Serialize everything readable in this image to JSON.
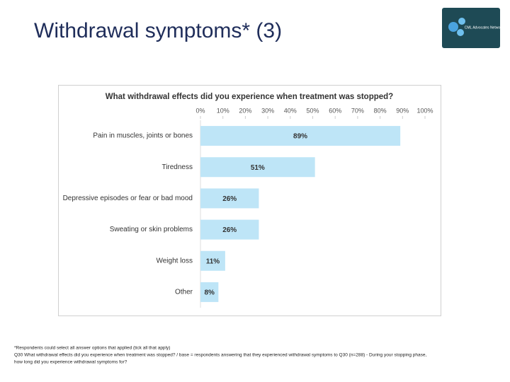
{
  "header": {
    "title": "Withdrawal symptoms* (3)",
    "logo_text": "CML Advocates Network"
  },
  "chart_data": {
    "type": "bar",
    "orientation": "horizontal",
    "title": "What withdrawal effects did you experience when treatment was stopped?",
    "categories": [
      "Pain in muscles, joints or bones",
      "Tiredness",
      "Depressive episodes or fear or bad mood",
      "Sweating or skin problems",
      "Weight loss",
      "Other"
    ],
    "values": [
      89,
      51,
      26,
      26,
      11,
      8
    ],
    "value_labels": [
      "89%",
      "51%",
      "26%",
      "26%",
      "11%",
      "8%"
    ],
    "color": "#bee5f7",
    "xlim": [
      0,
      100
    ],
    "xticks": [
      {
        "value": 0,
        "label": "0%"
      },
      {
        "value": 10,
        "label": "10%"
      },
      {
        "value": 20,
        "label": "20%"
      },
      {
        "value": 30,
        "label": "30%"
      },
      {
        "value": 40,
        "label": "40%"
      },
      {
        "value": 50,
        "label": "50%"
      },
      {
        "value": 60,
        "label": "60%"
      },
      {
        "value": 70,
        "label": "70%"
      },
      {
        "value": 80,
        "label": "80%"
      },
      {
        "value": 90,
        "label": "90%"
      },
      {
        "value": 100,
        "label": "100%"
      }
    ]
  },
  "footnotes": [
    "*Respondents could select all answer options that applied (tick all that apply)",
    "Q30 What withdrawal effects did you experience when treatment was stopped? / base = respondents answering that they experienced withdrawal symptoms to Q30 (n=288) - During your stopping phase,",
    "how long did you experience withdrawal symptoms for?"
  ]
}
